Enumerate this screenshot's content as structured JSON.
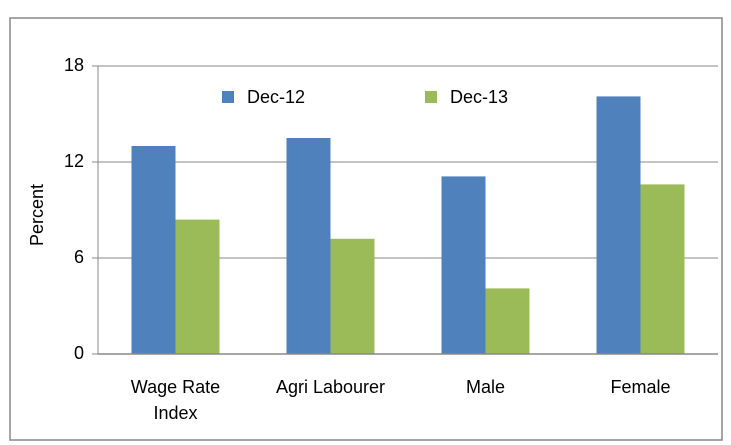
{
  "chart_data": {
    "type": "bar",
    "y_label": "Percent",
    "categories": [
      "Wage Rate Index",
      "Agri Labourer",
      "Male",
      "Female"
    ],
    "series": [
      {
        "name": "Dec-12",
        "color": "#4f81bd",
        "values": [
          13.0,
          13.5,
          11.1,
          16.1
        ]
      },
      {
        "name": "Dec-13",
        "color": "#9bbb59",
        "values": [
          8.4,
          7.2,
          4.1,
          10.6
        ]
      }
    ],
    "ylim": [
      0,
      18
    ],
    "yticks": [
      0,
      6,
      12,
      18
    ],
    "grid": true,
    "legend": "top"
  }
}
